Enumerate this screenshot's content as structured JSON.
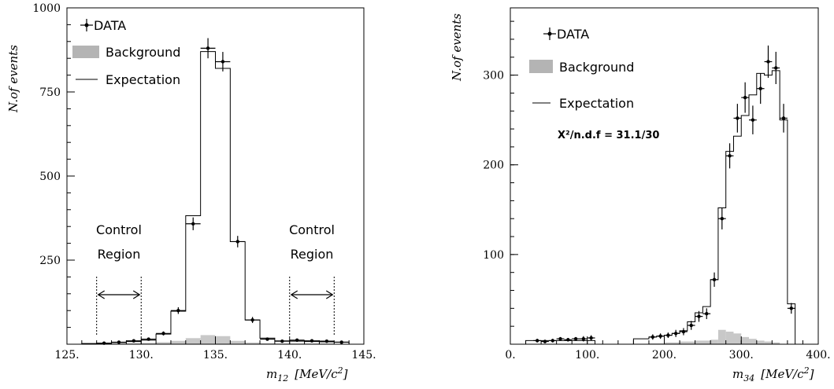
{
  "chart_data": [
    {
      "type": "histogram",
      "xlabel_main": "m",
      "xlabel_sub": "12",
      "xlabel_unit": "[MeV/c",
      "xlabel_sup": "2",
      "xlabel_close": "]",
      "ylabel": "N.of events",
      "xlim": [
        125,
        145
      ],
      "ylim": [
        0,
        1000
      ],
      "x_ticks": [
        125,
        130,
        135,
        140,
        145
      ],
      "x_tick_labels": [
        "125.",
        "130.",
        "135.",
        "140.",
        "145."
      ],
      "y_ticks": [
        250,
        500,
        750,
        1000
      ],
      "y_tick_labels": [
        "250",
        "500",
        "750",
        "1000"
      ],
      "legend": {
        "data": "DATA",
        "background": "Background",
        "expectation": "Expectation",
        "placement": "top-left"
      },
      "annotations": [
        {
          "line1": "Control",
          "line2": "Region",
          "x_from": 127,
          "x_to": 130
        },
        {
          "line1": "Control",
          "line2": "Region",
          "x_from": 140,
          "x_to": 143
        }
      ],
      "expectation": {
        "edges": [
          126,
          127,
          128,
          129,
          130,
          131,
          132,
          133,
          134,
          135,
          136,
          137,
          138,
          139,
          140,
          141,
          142,
          143,
          144
        ],
        "values": [
          2,
          3,
          5,
          8,
          12,
          30,
          98,
          382,
          870,
          820,
          305,
          72,
          18,
          10,
          9,
          8,
          7,
          6
        ]
      },
      "background": {
        "edges": [
          126,
          127,
          128,
          129,
          130,
          131,
          132,
          133,
          134,
          135,
          136,
          137,
          138,
          139,
          140,
          141,
          142,
          143,
          144
        ],
        "values": [
          1,
          2,
          2,
          3,
          4,
          6,
          10,
          18,
          27,
          24,
          10,
          5,
          3,
          2,
          2,
          2,
          2,
          1
        ]
      },
      "data": {
        "x": [
          127.5,
          128.5,
          129.5,
          130.5,
          131.5,
          132.5,
          133.5,
          134.5,
          135.5,
          136.5,
          137.5,
          138.5,
          139.5,
          140.5,
          141.5,
          142.5,
          143.5
        ],
        "y": [
          3,
          6,
          10,
          15,
          32,
          100,
          358,
          880,
          840,
          305,
          72,
          15,
          9,
          12,
          10,
          9,
          6
        ],
        "yerr": [
          2,
          3,
          3,
          4,
          6,
          10,
          19,
          30,
          29,
          17,
          9,
          4,
          3,
          4,
          3,
          3,
          3
        ]
      }
    },
    {
      "type": "histogram",
      "xlabel_main": "m",
      "xlabel_sub": "34",
      "xlabel_unit": "[MeV/c",
      "xlabel_sup": "2",
      "xlabel_close": "]",
      "ylabel": "N.of events",
      "xlim": [
        0,
        400
      ],
      "ylim": [
        0,
        375
      ],
      "x_ticks": [
        0,
        100,
        200,
        300,
        400
      ],
      "x_tick_labels": [
        "0.",
        "100.",
        "200.",
        "300.",
        "400."
      ],
      "y_ticks": [
        100,
        200,
        300
      ],
      "y_tick_labels": [
        "100",
        "200",
        "300"
      ],
      "legend": {
        "data": "DATA",
        "background": "Background",
        "expectation": "Expectation",
        "placement": "top-left"
      },
      "chi2_label": "X²/n.d.f = 31.1/30",
      "expectation": {
        "edges": [
          20,
          110,
          160,
          180,
          190,
          200,
          210,
          220,
          230,
          240,
          250,
          260,
          270,
          280,
          290,
          300,
          310,
          320,
          330,
          340,
          350,
          360,
          370
        ],
        "values": [
          4,
          0,
          6,
          8,
          9,
          10,
          12,
          15,
          25,
          35,
          42,
          72,
          152,
          215,
          232,
          255,
          278,
          302,
          300,
          305,
          250,
          45
        ]
      },
      "background": {
        "edges": [
          160,
          180,
          200,
          220,
          240,
          260,
          270,
          280,
          290,
          300,
          310,
          320,
          330,
          340,
          350
        ],
        "values": [
          0,
          1,
          2,
          3,
          4,
          5,
          16,
          14,
          12,
          8,
          6,
          4,
          3,
          2
        ]
      },
      "data": {
        "x": [
          35,
          45,
          55,
          65,
          75,
          85,
          95,
          105,
          185,
          195,
          205,
          215,
          225,
          235,
          245,
          255,
          265,
          275,
          285,
          295,
          305,
          315,
          325,
          335,
          345,
          355,
          365
        ],
        "y": [
          4,
          3,
          4,
          6,
          5,
          6,
          6,
          7,
          8,
          9,
          10,
          12,
          14,
          21,
          31,
          34,
          72,
          140,
          210,
          252,
          275,
          250,
          285,
          315,
          308,
          252,
          40
        ],
        "yerr": [
          2,
          2,
          2,
          2,
          2,
          2,
          3,
          3,
          3,
          3,
          3,
          4,
          4,
          5,
          6,
          6,
          8,
          12,
          14,
          16,
          17,
          16,
          17,
          18,
          18,
          16,
          6
        ]
      }
    }
  ]
}
